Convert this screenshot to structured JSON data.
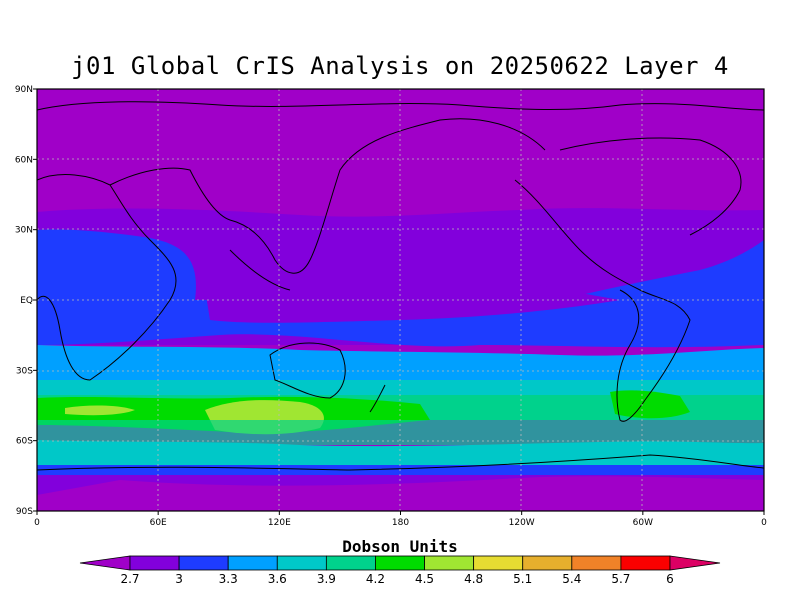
{
  "title": "j01 Global CrIS Analysis on 20250622 Layer 4",
  "lat_labels": [
    "90N",
    "60N",
    "30N",
    "EQ",
    "30S",
    "60S",
    "90S"
  ],
  "lon_labels": [
    "0",
    "60E",
    "120E",
    "180",
    "120W",
    "60W",
    "0"
  ],
  "colorbar": {
    "title": "Dobson Units",
    "tick_labels": [
      "2.7",
      "3",
      "3.3",
      "3.6",
      "3.9",
      "4.2",
      "4.5",
      "4.8",
      "5.1",
      "5.4",
      "5.7",
      "6"
    ],
    "colors": [
      "#a000c8",
      "#8200dc",
      "#1e3cff",
      "#00a0ff",
      "#00c8c8",
      "#00d28c",
      "#00dc00",
      "#a0e632",
      "#e6dc32",
      "#e6af2d",
      "#f08228",
      "#fa0000",
      "#dc0064"
    ]
  },
  "chart_data": {
    "type": "heatmap",
    "title": "j01 Global CrIS Analysis on 20250622 Layer 4",
    "variable": "Dobson Units",
    "xlabels": [
      "0",
      "60E",
      "120E",
      "180",
      "120W",
      "60W",
      "0"
    ],
    "ylabels": [
      "90N",
      "60N",
      "30N",
      "EQ",
      "30S",
      "60S",
      "90S"
    ],
    "xlim": [
      0,
      360
    ],
    "ylim": [
      -90,
      90
    ],
    "grid": true,
    "levels": [
      2.7,
      3,
      3.3,
      3.6,
      3.9,
      4.2,
      4.5,
      4.8,
      5.1,
      5.4,
      5.7,
      6
    ],
    "zonal_bands": [
      {
        "lat_from": 90,
        "lat_to": 35,
        "value_range": "<2.7"
      },
      {
        "lat_from": 35,
        "lat_to": 20,
        "value_range": "2.7-3"
      },
      {
        "lat_from": 20,
        "lat_to": -20,
        "value_range": "2.7-3.3"
      },
      {
        "lat_from": -20,
        "lat_to": -30,
        "value_range": "3-3.3"
      },
      {
        "lat_from": -30,
        "lat_to": -38,
        "value_range": "3.3-3.9"
      },
      {
        "lat_from": -38,
        "lat_to": -47,
        "value_range": "3.9-4.5"
      },
      {
        "lat_from": -47,
        "lat_to": -57,
        "value_range": "4.2-4.8"
      },
      {
        "lat_from": -57,
        "lat_to": -65,
        "value_range": "3.3-3.9"
      },
      {
        "lat_from": -65,
        "lat_to": -90,
        "value_range": "2.7-3.3"
      }
    ]
  }
}
